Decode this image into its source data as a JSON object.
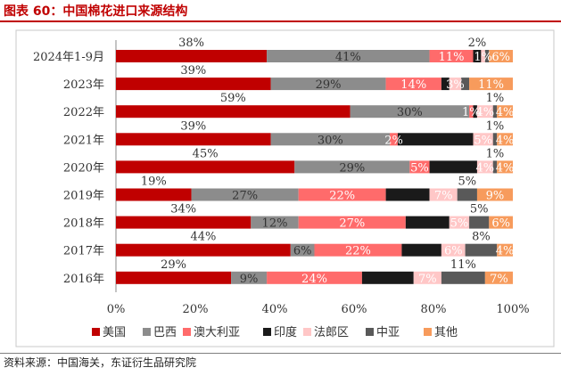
{
  "figure_title": "图表 60：中国棉花进口来源结构",
  "source_note": "资料来源：中国海关，东证衍生品研究院",
  "colors": {
    "美国": "#c00000",
    "巴西": "#8c8c8c",
    "澳大利亚": "#ff6b6b",
    "印度": "#1a1a1a",
    "法郎区": "#ffc7c7",
    "中亚": "#595959",
    "其他": "#f79b5c"
  },
  "chart_data": {
    "type": "bar",
    "orientation": "horizontal",
    "stacked": "percent",
    "title": "",
    "xlabel": "",
    "ylabel": "",
    "xlim": [
      0,
      100
    ],
    "x_ticks": [
      "0%",
      "20%",
      "40%",
      "60%",
      "80%",
      "100%"
    ],
    "categories": [
      "2024年1-9月",
      "2023年",
      "2022年",
      "2021年",
      "2020年",
      "2019年",
      "2018年",
      "2017年",
      "2016年"
    ],
    "legend": [
      "美国",
      "巴西",
      "澳大利亚",
      "印度",
      "法郎区",
      "中亚",
      "其他"
    ],
    "legend_position": "bottom",
    "series": [
      {
        "name": "美国",
        "values": [
          38,
          39,
          59,
          39,
          45,
          19,
          34,
          44,
          29
        ],
        "labels": [
          "38%",
          "39%",
          "59%",
          "39%",
          "45%",
          "19%",
          "34%",
          "44%",
          "29%"
        ]
      },
      {
        "name": "巴西",
        "values": [
          41,
          29,
          30,
          30,
          29,
          27,
          12,
          6,
          9
        ],
        "labels": [
          "41%",
          "29%",
          "30%",
          "30%",
          "29%",
          "27%",
          "12%",
          "6%",
          "9%"
        ]
      },
      {
        "name": "澳大利亚",
        "values": [
          11,
          14,
          1,
          2,
          5,
          22,
          27,
          22,
          24
        ],
        "labels": [
          "11%",
          "14%",
          "1%",
          "2%",
          "5%",
          "22%",
          "27%",
          "22%",
          "24%"
        ]
      },
      {
        "name": "印度",
        "values": [
          2,
          2,
          1,
          19,
          12,
          11,
          11,
          10,
          13
        ],
        "labels": [
          "2%",
          "",
          "",
          "",
          "",
          "",
          "",
          "",
          ""
        ]
      },
      {
        "name": "法郎区",
        "values": [
          1,
          3,
          4,
          5,
          4,
          7,
          5,
          6,
          7
        ],
        "labels": [
          "1%",
          "3%",
          "4%",
          "5%",
          "4%",
          "7%",
          "5%",
          "6%",
          "7%"
        ]
      },
      {
        "name": "中亚",
        "values": [
          1,
          2,
          1,
          1,
          1,
          5,
          5,
          8,
          11
        ],
        "labels": [
          "",
          "",
          "1%",
          "1%",
          "1%",
          "5%",
          "5%",
          "8%",
          "11%"
        ]
      },
      {
        "name": "其他",
        "values": [
          6,
          11,
          4,
          4,
          4,
          9,
          6,
          4,
          7
        ],
        "labels": [
          "6%",
          "11%",
          "4%",
          "4%",
          "4%",
          "9%",
          "6%",
          "4%",
          "7%"
        ]
      }
    ]
  }
}
